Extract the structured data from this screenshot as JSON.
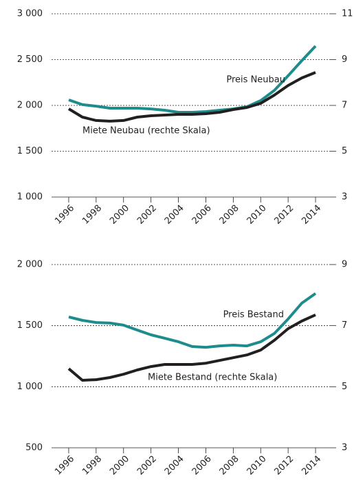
{
  "chart_data": [
    {
      "type": "line",
      "x": [
        1996,
        1997,
        1998,
        1999,
        2000,
        2001,
        2002,
        2003,
        2004,
        2005,
        2006,
        2007,
        2008,
        2009,
        2010,
        2011,
        2012,
        2013,
        2014
      ],
      "xlim": [
        1995,
        2015
      ],
      "xticks": [
        1996,
        1998,
        2000,
        2002,
        2004,
        2006,
        2008,
        2010,
        2012,
        2014
      ],
      "ylim": [
        1000,
        3000
      ],
      "yticks": [
        {
          "value": 1000,
          "label": "1 000"
        },
        {
          "value": 1500,
          "label": "1 500"
        },
        {
          "value": 2000,
          "label": "2 000"
        },
        {
          "value": 2500,
          "label": "2 500"
        },
        {
          "value": 3000,
          "label": "3 000"
        }
      ],
      "y2lim": [
        3,
        11
      ],
      "y2ticks": [
        3,
        5,
        7,
        9,
        11
      ],
      "grid": true,
      "series": [
        {
          "name": "Preis Neubau",
          "color": "#1e8c8c",
          "values": [
            2060,
            2008,
            1992,
            1970,
            1970,
            1970,
            1962,
            1947,
            1925,
            1925,
            1932,
            1947,
            1962,
            1985,
            2053,
            2165,
            2323,
            2489,
            2647
          ]
        },
        {
          "name": "Miete Neubau (rechte Skala)",
          "color": "#231f20",
          "axis": "y2",
          "values": [
            6.85,
            6.49,
            6.34,
            6.31,
            6.34,
            6.49,
            6.55,
            6.58,
            6.61,
            6.61,
            6.64,
            6.7,
            6.82,
            6.91,
            7.09,
            7.45,
            7.87,
            8.2,
            8.44
          ]
        }
      ]
    },
    {
      "type": "line",
      "x": [
        1996,
        1997,
        1998,
        1999,
        2000,
        2001,
        2002,
        2003,
        2004,
        2005,
        2006,
        2007,
        2008,
        2009,
        2010,
        2011,
        2012,
        2013,
        2014
      ],
      "xlim": [
        1995,
        2015
      ],
      "xticks": [
        1996,
        1998,
        2000,
        2002,
        2004,
        2006,
        2008,
        2010,
        2012,
        2014
      ],
      "ylim": [
        500,
        2000
      ],
      "yticks": [
        500,
        {
          "value": 1000,
          "label": "1 000"
        },
        {
          "value": 1500,
          "label": "1 500"
        },
        {
          "value": 2000,
          "label": "2 000"
        }
      ],
      "y2lim": [
        3,
        9
      ],
      "y2ticks": [
        3,
        5,
        7,
        9
      ],
      "grid": true,
      "series": [
        {
          "name": "Preis Bestand",
          "color": "#1e8c8c",
          "values": [
            1571,
            1543,
            1526,
            1521,
            1504,
            1464,
            1425,
            1397,
            1368,
            1329,
            1323,
            1334,
            1340,
            1334,
            1368,
            1436,
            1554,
            1684,
            1763
          ]
        },
        {
          "name": "Miete Bestand (rechte Skala)",
          "color": "#231f20",
          "axis": "y2",
          "values": [
            5.59,
            5.21,
            5.23,
            5.3,
            5.41,
            5.55,
            5.66,
            5.73,
            5.73,
            5.73,
            5.77,
            5.86,
            5.95,
            6.04,
            6.2,
            6.52,
            6.9,
            7.15,
            7.35
          ]
        }
      ]
    }
  ]
}
